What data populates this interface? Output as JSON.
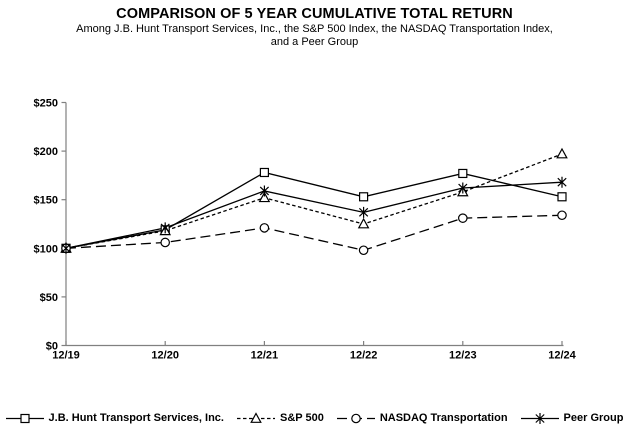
{
  "header": {
    "title": "COMPARISON OF 5 YEAR CUMULATIVE TOTAL RETURN",
    "subtitle_line1": "Among J.B. Hunt Transport Services, Inc., the S&P 500 Index, the NASDAQ Transportation Index,",
    "subtitle_line2": "and a Peer Group"
  },
  "chart_data": {
    "type": "line",
    "title": "COMPARISON OF 5 YEAR CUMULATIVE TOTAL RETURN",
    "categories": [
      "12/19",
      "12/20",
      "12/21",
      "12/22",
      "12/23",
      "12/24"
    ],
    "y_tick_labels": [
      "$0",
      "$50",
      "$100",
      "$150",
      "$200",
      "$250"
    ],
    "ylim": [
      0,
      250
    ],
    "y_step": 50,
    "grid": false,
    "legend_position": "bottom",
    "series": [
      {
        "name": "J.B. Hunt Transport Services, Inc.",
        "marker": "square-marker-icon",
        "line_style": "solid",
        "values": [
          100,
          119,
          178,
          153,
          177,
          153
        ]
      },
      {
        "name": "S&P 500",
        "marker": "triangle-marker-icon",
        "line_style": "dotted",
        "values": [
          100,
          118,
          152,
          125,
          158,
          197
        ]
      },
      {
        "name": "NASDAQ Transportation",
        "marker": "circle-marker-icon",
        "line_style": "dashed",
        "values": [
          100,
          106,
          121,
          98,
          131,
          134
        ]
      },
      {
        "name": "Peer Group",
        "marker": "star-marker-icon",
        "line_style": "solid",
        "values": [
          100,
          121,
          159,
          137,
          162,
          168
        ]
      }
    ],
    "colors": {
      "series_line": "#000000",
      "marker_fill": "#ffffff",
      "axis_line": "#808080",
      "text": "#000000",
      "background": "#ffffff"
    }
  }
}
